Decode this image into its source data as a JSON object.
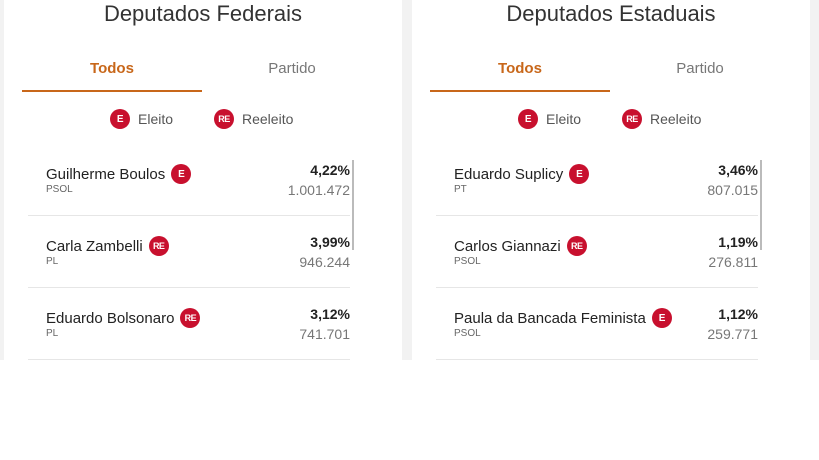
{
  "legend": {
    "eleito_badge": "E",
    "eleito_label": "Eleito",
    "reeleito_badge": "RE",
    "reeleito_label": "Reeleito"
  },
  "federais": {
    "title": "Deputados Federais",
    "tabs": [
      {
        "label": "Todos"
      },
      {
        "label": "Partido"
      }
    ],
    "candidates": [
      {
        "name": "Guilherme Boulos",
        "badge": "E",
        "party": "PSOL",
        "pct": "4,22%",
        "votes": "1.001.472"
      },
      {
        "name": "Carla Zambelli",
        "badge": "RE",
        "party": "PL",
        "pct": "3,99%",
        "votes": "946.244"
      },
      {
        "name": "Eduardo Bolsonaro",
        "badge": "RE",
        "party": "PL",
        "pct": "3,12%",
        "votes": "741.701"
      }
    ]
  },
  "estaduais": {
    "title": "Deputados Estaduais",
    "tabs": [
      {
        "label": "Todos"
      },
      {
        "label": "Partido"
      }
    ],
    "candidates": [
      {
        "name": "Eduardo Suplicy",
        "badge": "E",
        "party": "PT",
        "pct": "3,46%",
        "votes": "807.015"
      },
      {
        "name": "Carlos Giannazi",
        "badge": "RE",
        "party": "PSOL",
        "pct": "1,19%",
        "votes": "276.811"
      },
      {
        "name": "Paula da Bancada Feminista",
        "badge": "E",
        "party": "PSOL",
        "pct": "1,12%",
        "votes": "259.771"
      }
    ]
  },
  "colors": {
    "accent": "#c8671a",
    "badge_red": "#c8102e"
  }
}
